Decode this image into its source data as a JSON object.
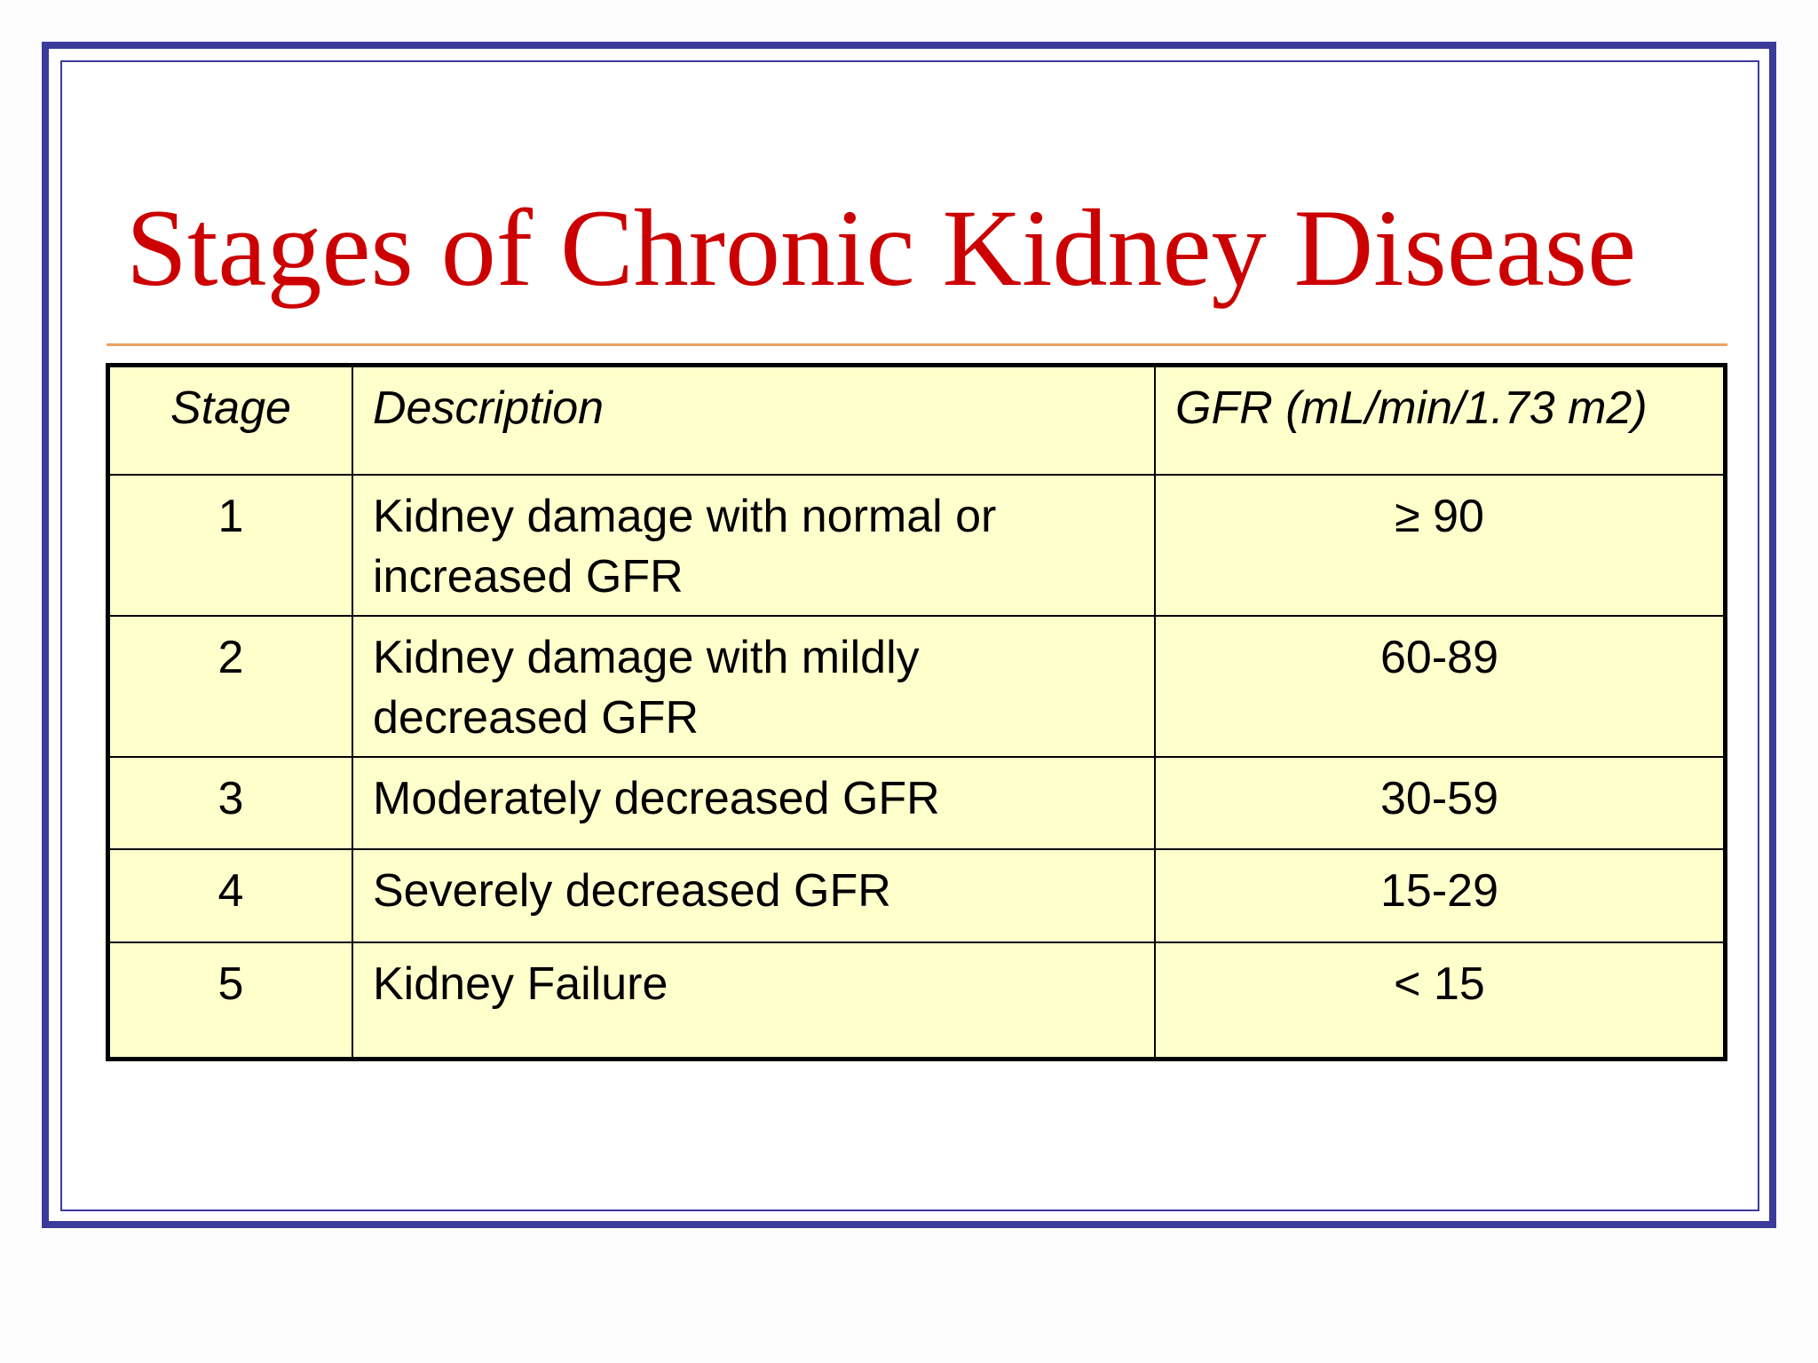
{
  "title": "Stages of Chronic Kidney Disease",
  "table": {
    "header": [
      "Stage",
      "Description",
      "GFR (mL/min/1.73 m2)"
    ],
    "rows": [
      [
        "1",
        "Kidney damage with normal or increased GFR",
        "≥ 90"
      ],
      [
        "2",
        "Kidney damage with mildly decreased GFR",
        "60-89"
      ],
      [
        "3",
        "Moderately decreased GFR",
        "30-59"
      ],
      [
        "4",
        "Severely decreased GFR",
        "15-29"
      ],
      [
        "5",
        "Kidney Failure",
        "< 15"
      ]
    ]
  }
}
